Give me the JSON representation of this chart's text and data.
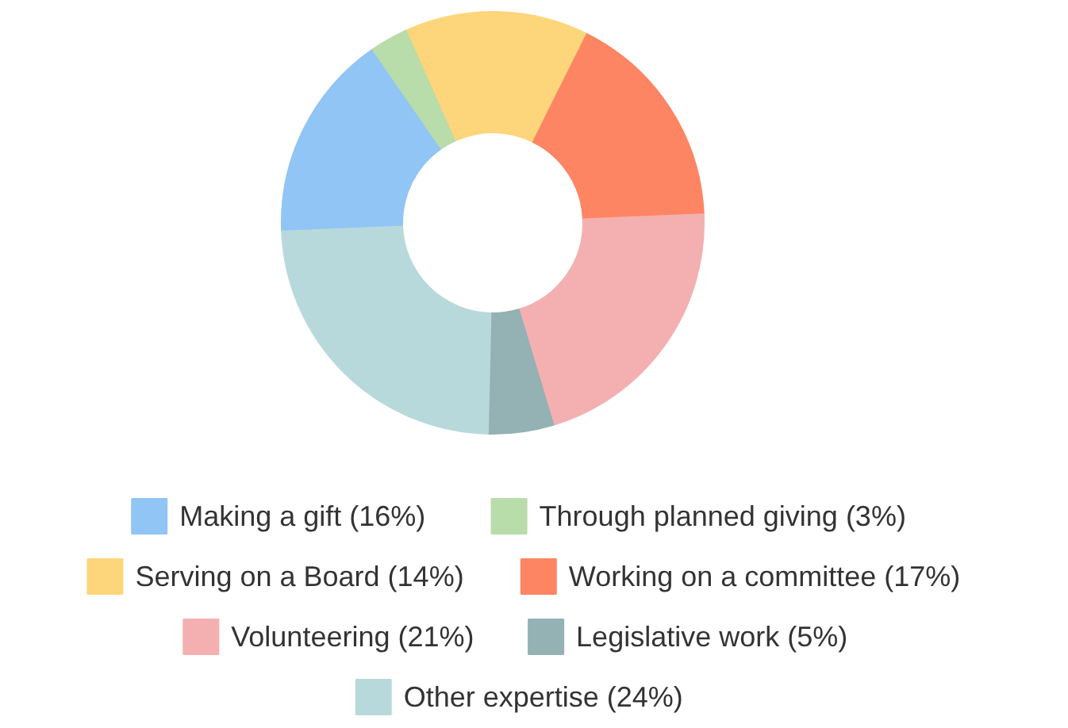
{
  "chart_data": {
    "type": "donut",
    "legend": "bottom",
    "categories": [
      "Making a gift (16%)",
      "Through planned giving (3%)",
      "Serving on a Board (14%)",
      "Working on a committee (17%)",
      "Volunteering (21%)",
      "Legislative work (5%)",
      "Other expertise (24%)"
    ],
    "values": [
      16,
      3,
      14,
      17,
      21,
      5,
      24
    ],
    "colors": [
      "#90c5f5",
      "#b8dcaa",
      "#fdd57a",
      "#fd8563",
      "#f4b0b0",
      "#94b1b4",
      "#b8d9dc"
    ]
  }
}
